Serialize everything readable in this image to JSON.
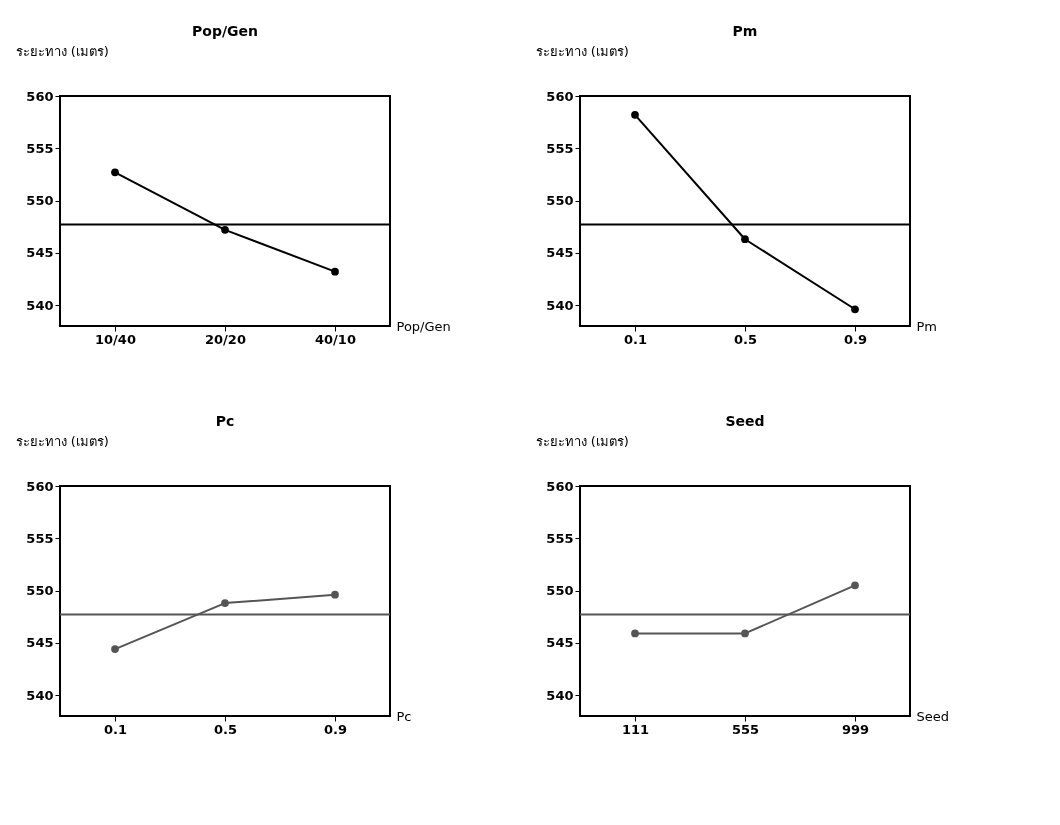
{
  "chart_data": [
    {
      "type": "line",
      "title": "Pop/Gen",
      "ylabel": "ระยะทาง (เมตร)",
      "xlabel": "Pop/Gen",
      "categories": [
        "10/40",
        "20/20",
        "40/10"
      ],
      "series": [
        {
          "color": "#000000",
          "values": [
            552.7,
            547.2,
            543.2
          ]
        }
      ],
      "ylim": [
        538,
        560
      ],
      "yticks": [
        540,
        545,
        550,
        555,
        560
      ],
      "ref_lines": [
        {
          "axis": "y",
          "value": 547.7,
          "color": "#000000"
        }
      ],
      "marker": "circle"
    },
    {
      "type": "line",
      "title": "Pm",
      "ylabel": "ระยะทาง (เมตร)",
      "xlabel": "Pm",
      "categories": [
        "0.1",
        "0.5",
        "0.9"
      ],
      "series": [
        {
          "color": "#000000",
          "values": [
            558.2,
            546.3,
            539.6
          ]
        }
      ],
      "ylim": [
        538,
        560
      ],
      "yticks": [
        540,
        545,
        550,
        555,
        560
      ],
      "ref_lines": [
        {
          "axis": "y",
          "value": 547.7,
          "color": "#000000"
        }
      ],
      "marker": "circle"
    },
    {
      "type": "line",
      "title": "Pc",
      "ylabel": "ระยะทาง (เมตร)",
      "xlabel": "Pc",
      "categories": [
        "0.1",
        "0.5",
        "0.9"
      ],
      "series": [
        {
          "color": "#555555",
          "values": [
            544.4,
            548.8,
            549.6
          ]
        }
      ],
      "ylim": [
        538,
        560
      ],
      "yticks": [
        540,
        545,
        550,
        555,
        560
      ],
      "ref_lines": [
        {
          "axis": "y",
          "value": 547.7,
          "color": "#555555"
        }
      ],
      "marker": "circle"
    },
    {
      "type": "line",
      "title": "Seed",
      "ylabel": "ระยะทาง (เมตร)",
      "xlabel": "Seed",
      "categories": [
        "111",
        "555",
        "999"
      ],
      "series": [
        {
          "color": "#555555",
          "values": [
            545.9,
            545.9,
            550.5
          ]
        }
      ],
      "ylim": [
        538,
        560
      ],
      "yticks": [
        540,
        545,
        550,
        555,
        560
      ],
      "ref_lines": [
        {
          "axis": "y",
          "value": 547.7,
          "color": "#555555"
        }
      ],
      "marker": "circle"
    }
  ]
}
